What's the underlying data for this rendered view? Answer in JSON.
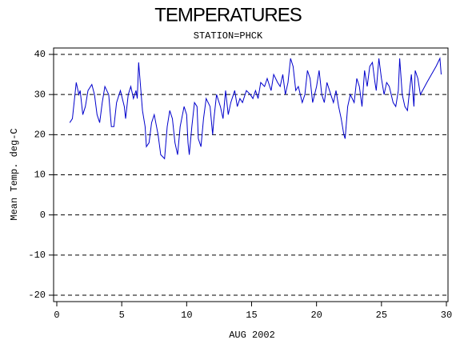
{
  "chart_data": {
    "type": "line",
    "title": "TEMPERATURES",
    "subtitle": "STATION=PHCK",
    "x_label": "AUG 2002",
    "y_label": "Mean Temp. deg-C",
    "xlim": [
      0,
      30
    ],
    "xticks": [
      0,
      5,
      10,
      15,
      20,
      25,
      30
    ],
    "ylim": [
      -20,
      40
    ],
    "yticks": [
      -20,
      -10,
      0,
      10,
      20,
      30,
      40
    ],
    "grid": true,
    "series": [
      {
        "name": "PHCK",
        "color": "#0000cc",
        "x": [
          1.0,
          1.2,
          1.4,
          1.5,
          1.7,
          1.8,
          2.0,
          2.2,
          2.4,
          2.7,
          2.9,
          3.1,
          3.3,
          3.5,
          3.7,
          4.0,
          4.2,
          4.4,
          4.6,
          4.9,
          5.2,
          5.3,
          5.5,
          5.7,
          5.9,
          6.1,
          6.2,
          6.3,
          6.5,
          6.6,
          6.8,
          6.9,
          7.1,
          7.3,
          7.5,
          7.8,
          8.0,
          8.3,
          8.5,
          8.7,
          8.9,
          9.1,
          9.3,
          9.5,
          9.8,
          10.0,
          10.1,
          10.2,
          10.4,
          10.6,
          10.8,
          10.9,
          11.1,
          11.3,
          11.5,
          11.8,
          12.0,
          12.1,
          12.3,
          12.6,
          12.8,
          13.0,
          13.2,
          13.4,
          13.7,
          13.9,
          14.1,
          14.3,
          14.6,
          14.9,
          15.1,
          15.3,
          15.5,
          15.7,
          16.0,
          16.2,
          16.4,
          16.5,
          16.7,
          17.0,
          17.2,
          17.4,
          17.6,
          17.8,
          18.0,
          18.2,
          18.4,
          18.6,
          18.9,
          19.1,
          19.3,
          19.5,
          19.7,
          20.0,
          20.2,
          20.4,
          20.6,
          20.8,
          21.1,
          21.3,
          21.5,
          21.7,
          21.9,
          22.1,
          22.2,
          22.4,
          22.6,
          22.9,
          23.1,
          23.3,
          23.5,
          23.7,
          23.9,
          24.1,
          24.3,
          24.5,
          24.6,
          24.8,
          25.0,
          25.2,
          25.4,
          25.6,
          25.9,
          26.1,
          26.3,
          26.4,
          26.6,
          26.8,
          27.0,
          27.2,
          27.3,
          27.5,
          27.6,
          27.8,
          28.0,
          28.5,
          29.2,
          29.5,
          29.6
        ],
        "values": [
          23,
          24,
          30,
          33,
          30,
          31,
          25,
          27,
          31,
          32.5,
          30,
          25,
          23,
          28,
          32,
          30,
          22,
          22,
          28,
          31,
          27,
          24,
          30,
          32,
          29,
          31,
          29,
          38,
          30,
          26,
          22,
          17,
          18,
          23,
          25,
          20,
          15,
          14,
          22,
          26,
          24,
          18,
          15,
          22,
          27,
          25,
          18,
          15,
          22,
          28,
          27,
          19,
          17,
          24,
          29,
          27,
          20,
          24,
          30,
          27,
          24,
          31,
          25,
          28,
          31,
          27,
          29,
          28,
          31,
          30,
          29,
          31,
          29,
          33,
          32,
          34,
          32,
          31,
          35,
          33,
          32,
          35,
          30,
          33,
          39,
          37,
          31,
          32,
          28,
          30,
          36,
          34,
          28,
          32,
          36,
          30,
          28,
          33,
          30,
          28,
          31,
          27,
          24,
          20,
          19,
          27,
          30,
          28,
          34,
          32,
          27,
          36,
          32,
          37,
          38,
          33,
          31,
          39,
          34,
          30,
          33,
          32,
          28,
          27,
          31,
          39,
          30,
          27,
          26,
          32,
          35,
          27,
          36,
          34,
          30,
          33,
          37,
          39,
          35
        ]
      }
    ]
  }
}
